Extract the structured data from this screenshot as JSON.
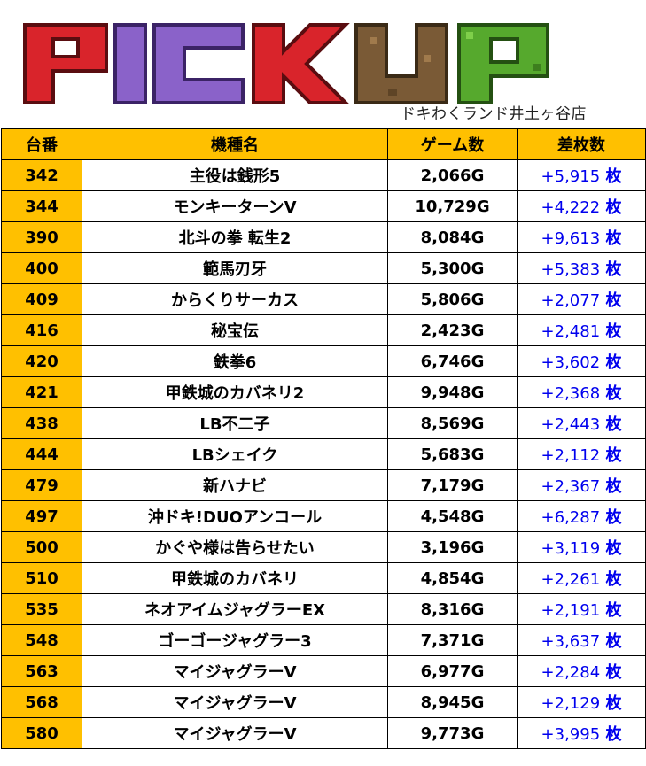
{
  "header": {
    "title": "PICKUP",
    "store_name": "ドキわくランド井土ヶ谷店",
    "letter_colors": [
      "#d9242b",
      "#8a62c9",
      "#8a62c9",
      "#d9242b",
      "#7a5a36",
      "#7a5a36",
      "#56a92d"
    ]
  },
  "table": {
    "columns": [
      "台番",
      "機種名",
      "ゲーム数",
      "差枚数"
    ],
    "unit": "枚",
    "rows": [
      {
        "num": "342",
        "name": "主役は銭形5",
        "games": "2,066G",
        "diff": "+5,915"
      },
      {
        "num": "344",
        "name": "モンキーターンV",
        "games": "10,729G",
        "diff": "+4,222"
      },
      {
        "num": "390",
        "name": "北斗の拳 転生2",
        "games": "8,084G",
        "diff": "+9,613"
      },
      {
        "num": "400",
        "name": "範馬刃牙",
        "games": "5,300G",
        "diff": "+5,383"
      },
      {
        "num": "409",
        "name": "からくりサーカス",
        "games": "5,806G",
        "diff": "+2,077"
      },
      {
        "num": "416",
        "name": "秘宝伝",
        "games": "2,423G",
        "diff": "+2,481"
      },
      {
        "num": "420",
        "name": "鉄拳6",
        "games": "6,746G",
        "diff": "+3,602"
      },
      {
        "num": "421",
        "name": "甲鉄城のカバネリ2",
        "games": "9,948G",
        "diff": "+2,368"
      },
      {
        "num": "438",
        "name": "LB不二子",
        "games": "8,569G",
        "diff": "+2,443"
      },
      {
        "num": "444",
        "name": "LBシェイク",
        "games": "5,683G",
        "diff": "+2,112"
      },
      {
        "num": "479",
        "name": "新ハナビ",
        "games": "7,179G",
        "diff": "+2,367"
      },
      {
        "num": "497",
        "name": "沖ドキ!DUOアンコール",
        "games": "4,548G",
        "diff": "+6,287"
      },
      {
        "num": "500",
        "name": "かぐや様は告らせたい",
        "games": "3,196G",
        "diff": "+3,119"
      },
      {
        "num": "510",
        "name": "甲鉄城のカバネリ",
        "games": "4,854G",
        "diff": "+2,261"
      },
      {
        "num": "535",
        "name": "ネオアイムジャグラーEX",
        "games": "8,316G",
        "diff": "+2,191"
      },
      {
        "num": "548",
        "name": "ゴーゴージャグラー3",
        "games": "7,371G",
        "diff": "+3,637"
      },
      {
        "num": "563",
        "name": "マイジャグラーV",
        "games": "6,977G",
        "diff": "+2,284"
      },
      {
        "num": "568",
        "name": "マイジャグラーV",
        "games": "8,945G",
        "diff": "+2,129"
      },
      {
        "num": "580",
        "name": "マイジャグラーV",
        "games": "9,773G",
        "diff": "+3,995"
      }
    ]
  }
}
